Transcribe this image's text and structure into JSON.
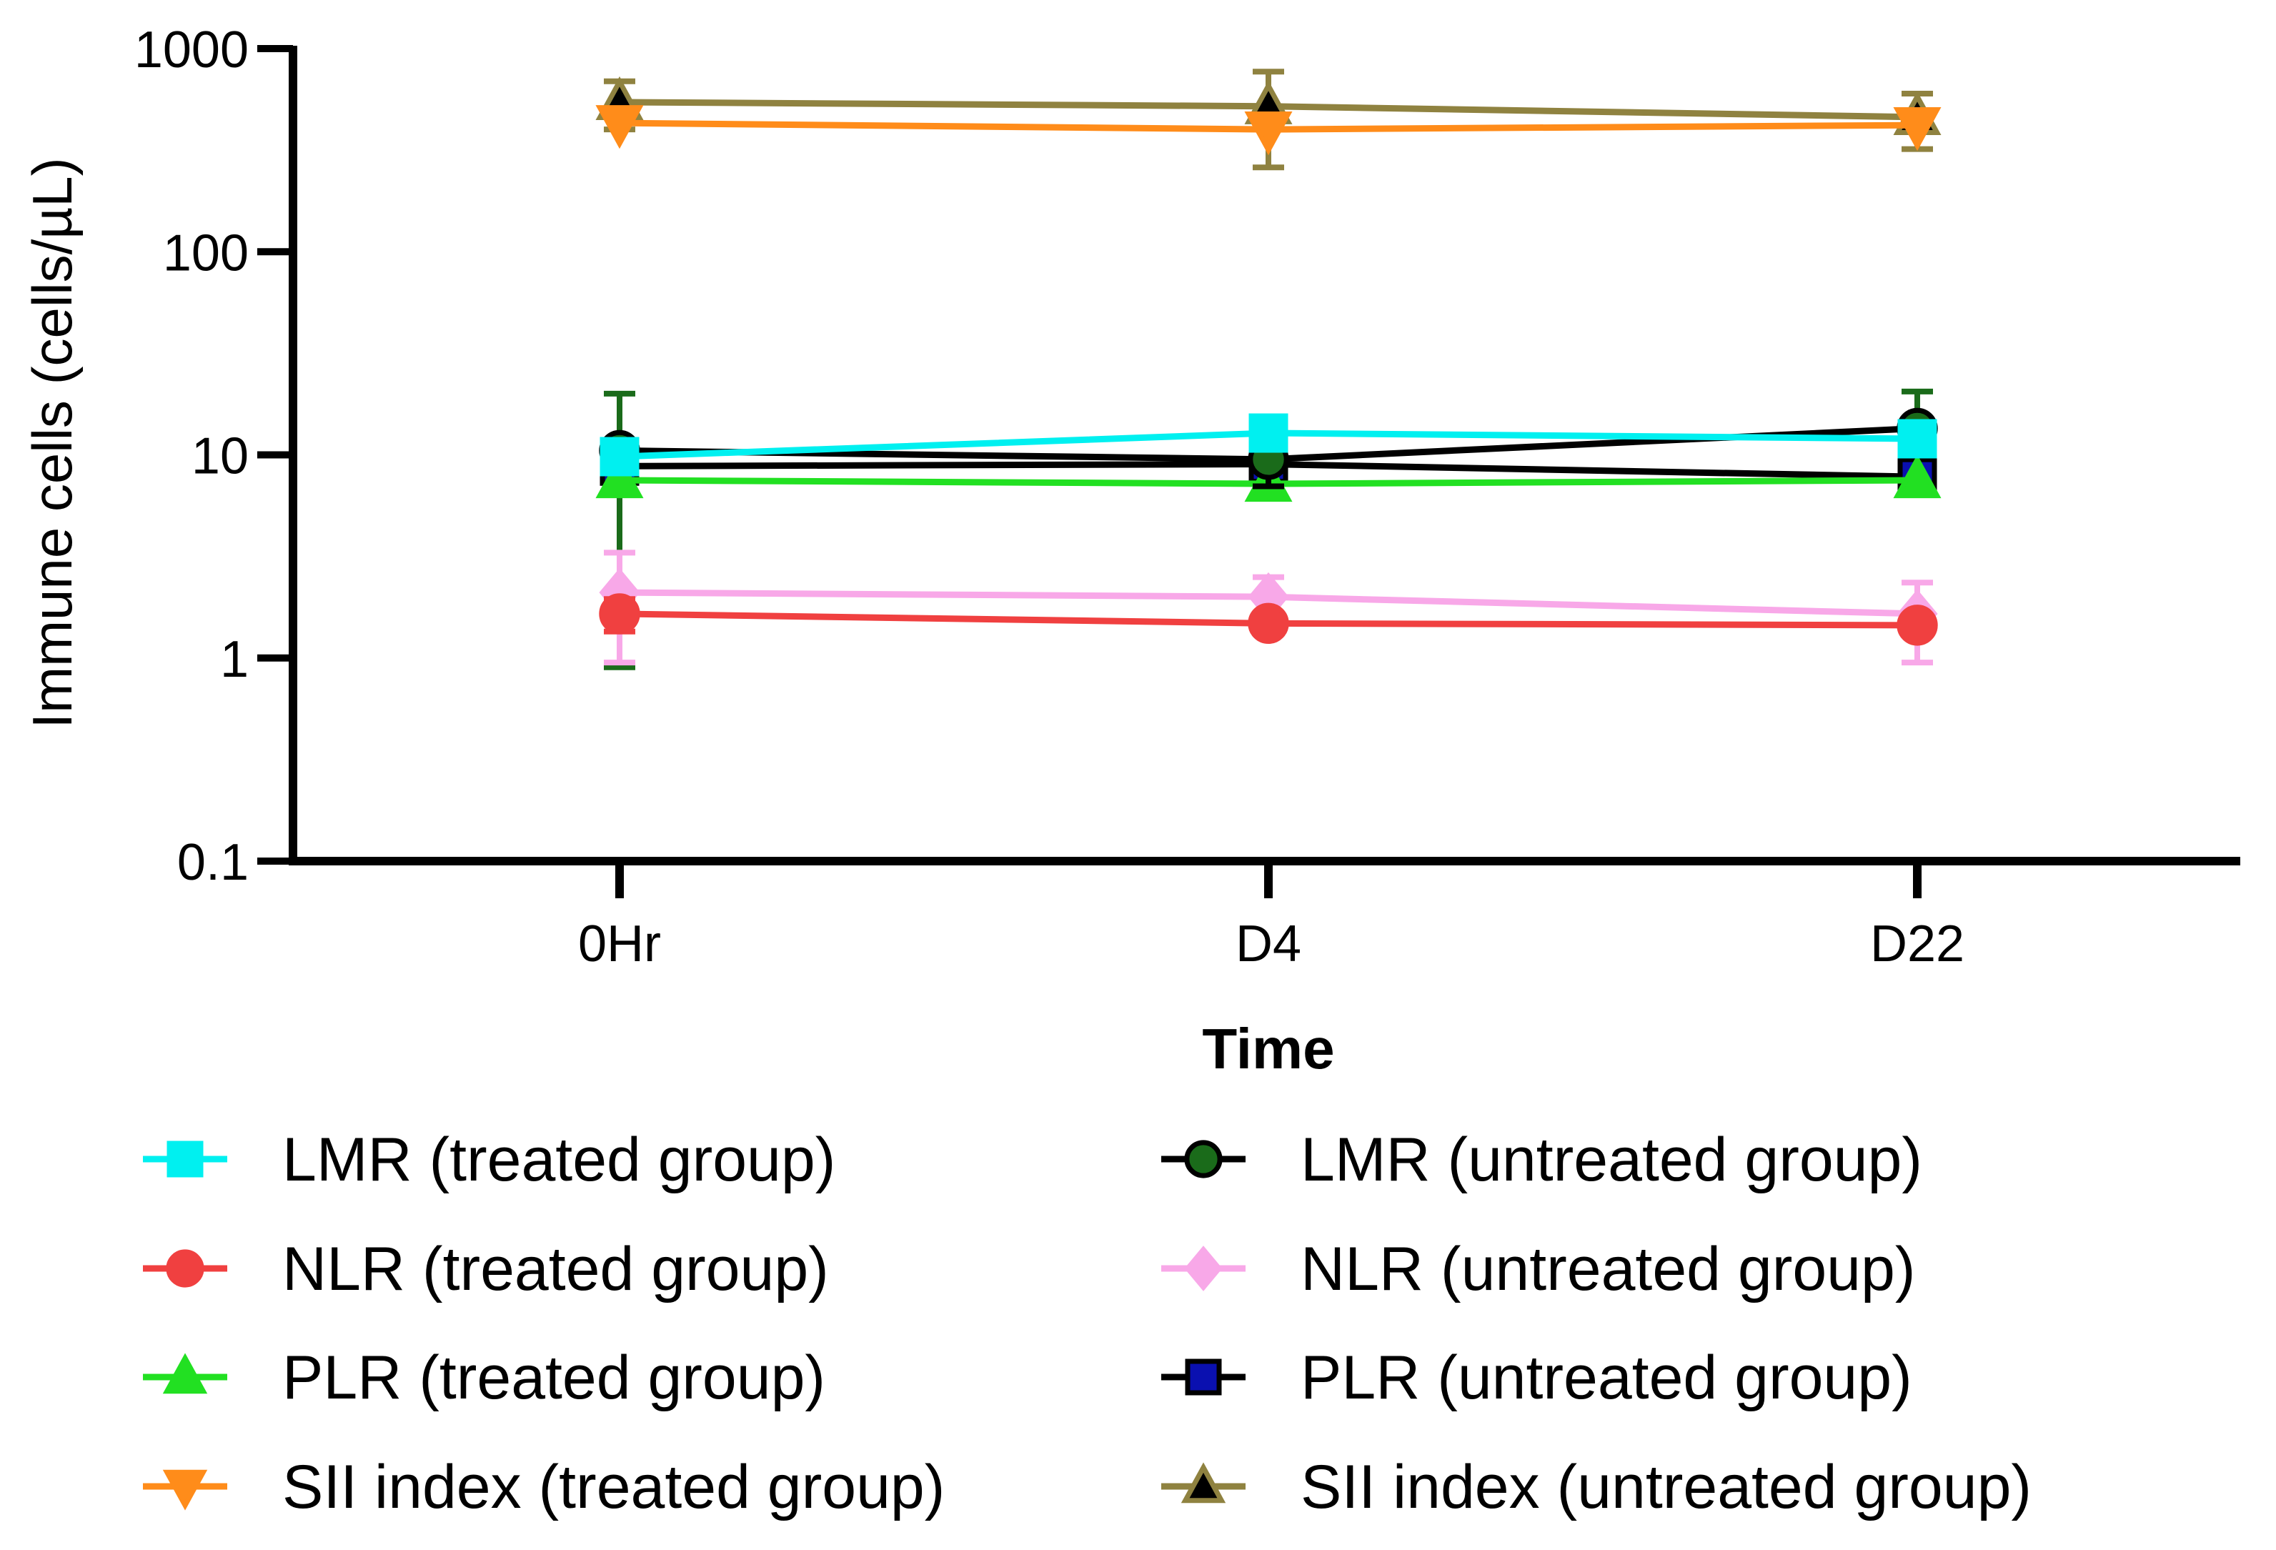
{
  "chart_data": {
    "type": "line",
    "title": "",
    "xlabel": "Time",
    "ylabel": "Immune cells (cells/µL)",
    "yscale": "log",
    "ylim": [
      0.1,
      1000
    ],
    "y_ticks": [
      0.1,
      1,
      10,
      100,
      1000
    ],
    "y_tick_labels": [
      "0.1",
      "1",
      "10",
      "100",
      "1000"
    ],
    "categories": [
      "0Hr",
      "D4",
      "D22"
    ],
    "legend_position": "bottom",
    "series": [
      {
        "name": "LMR (treated group)",
        "color": "#00f0f0",
        "marker": "square",
        "values": [
          9.8,
          12.8,
          12.0
        ],
        "err_low": [
          null,
          null,
          null
        ],
        "err_high": [
          null,
          null,
          null
        ]
      },
      {
        "name": "LMR (untreated group)",
        "color": "#000000",
        "marker_fill": "#1a6b1a",
        "marker": "circle",
        "values": [
          10.5,
          9.5,
          13.5
        ],
        "err_low": [
          null,
          7.0,
          null
        ],
        "err_high": [
          null,
          null,
          null
        ]
      },
      {
        "name": "NLR (treated group)",
        "color": "#f04040",
        "marker": "circle",
        "values": [
          1.65,
          1.48,
          1.45
        ],
        "err_low": [
          1.35,
          null,
          null
        ],
        "err_high": [
          1.95,
          null,
          null
        ]
      },
      {
        "name": "NLR (untreated group)",
        "color": "#f8a8e8",
        "marker": "diamond",
        "values": [
          2.1,
          2.0,
          1.65
        ],
        "err_low": [
          0.95,
          1.55,
          0.95
        ],
        "err_high": [
          3.3,
          2.5,
          2.35
        ]
      },
      {
        "name": "PLR (treated group)",
        "color": "#22e022",
        "marker": "triangle-up",
        "values": [
          7.5,
          7.2,
          7.5
        ],
        "err_low": [
          null,
          6.2,
          null
        ],
        "err_high": [
          null,
          8.5,
          null
        ]
      },
      {
        "name": "PLR (untreated group)",
        "color": "#000000",
        "marker_fill": "#0a10b0",
        "marker": "square",
        "values": [
          8.8,
          9.0,
          7.8
        ],
        "err_low": [
          null,
          null,
          6.5
        ],
        "err_high": [
          null,
          null,
          null
        ]
      },
      {
        "name": "SII index (treated group)",
        "color": "#ff8c1a",
        "marker": "triangle-down",
        "values": [
          430,
          400,
          420
        ],
        "err_low": [
          null,
          null,
          null
        ],
        "err_high": [
          null,
          null,
          null
        ]
      },
      {
        "name": "SII index (untreated group)",
        "color": "#8f8240",
        "marker_fill": "#000000",
        "marker": "triangle-up",
        "values": [
          545,
          520,
          460
        ],
        "err_low": [
          400,
          260,
          320
        ],
        "err_high": [
          690,
          770,
          600
        ]
      }
    ],
    "extra_error_bars": [
      {
        "series": "LMR (untreated group)",
        "category": "0Hr",
        "low": 0.9,
        "high": 20,
        "color": "#1a6b1a"
      },
      {
        "series": "LMR (untreated group)",
        "category": "D22",
        "low": 8.0,
        "high": 20.5,
        "color": "#1a6b1a"
      }
    ]
  }
}
